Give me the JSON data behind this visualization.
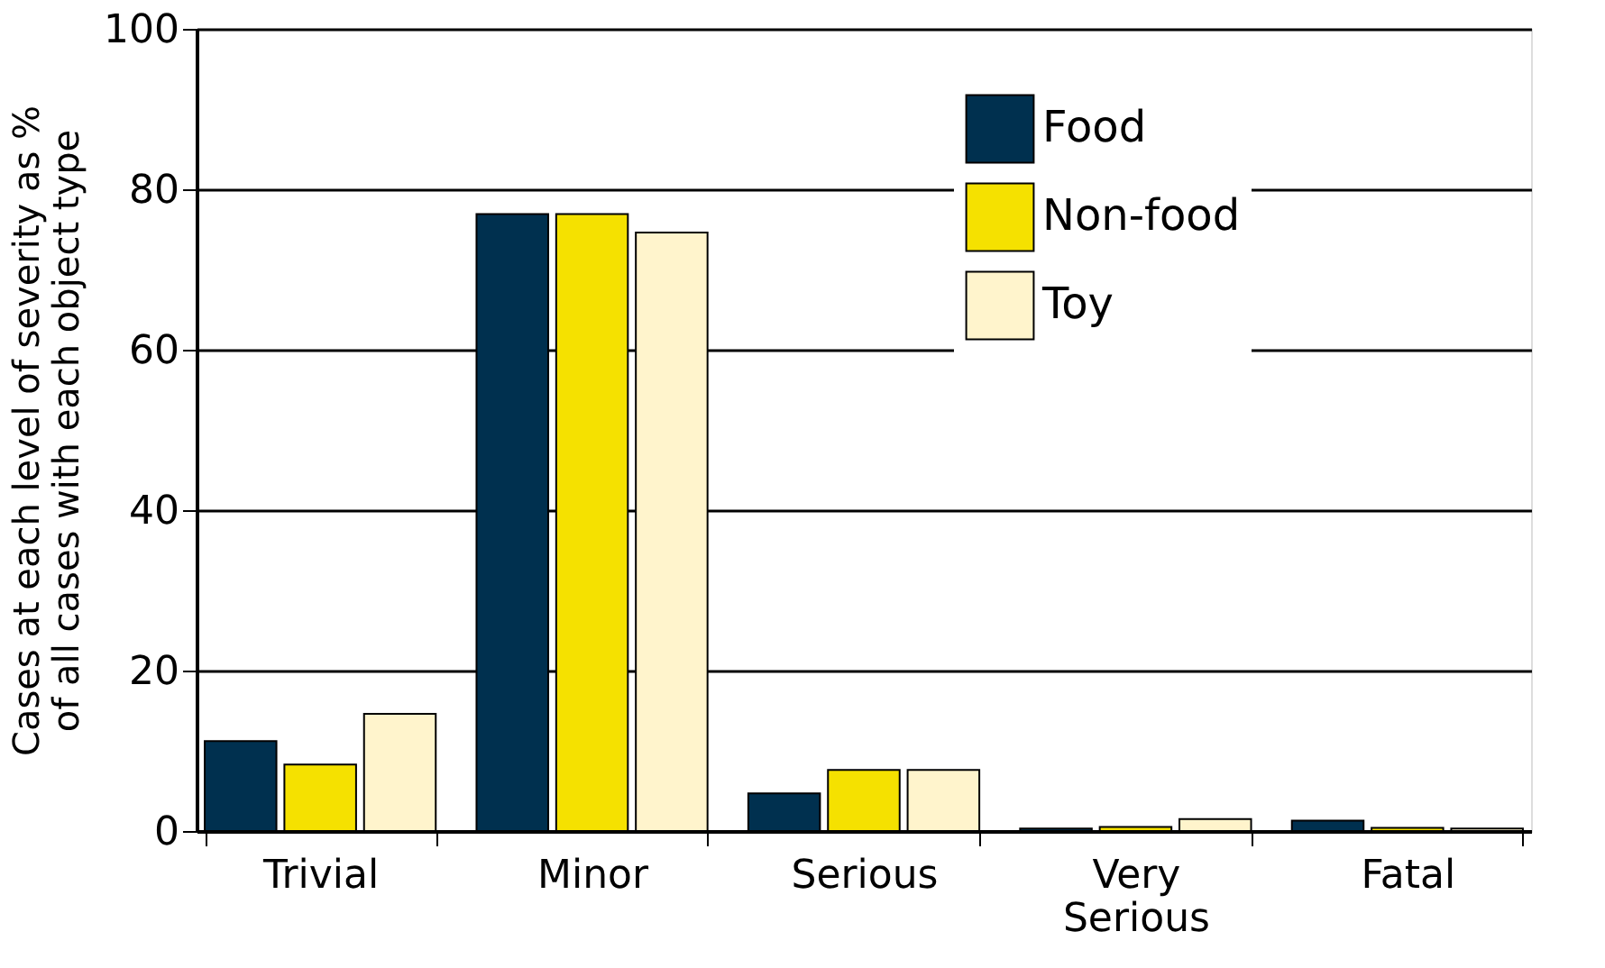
{
  "chart_data": {
    "type": "bar",
    "ylabel": "Cases at each level of severity as %\nof all cases with each object type",
    "categories": [
      "Trivial",
      "Minor",
      "Serious",
      "Very Serious",
      "Fatal"
    ],
    "series": [
      {
        "name": "Food",
        "color": "#00304f",
        "values": [
          11.2,
          76.9,
          4.7,
          0.3,
          1.3
        ]
      },
      {
        "name": "Non-food",
        "color": "#f5e100",
        "values": [
          8.3,
          76.9,
          7.6,
          0.5,
          0.4
        ]
      },
      {
        "name": "Toy",
        "color": "#fff4cc",
        "values": [
          14.6,
          74.6,
          7.6,
          1.5,
          0.3
        ]
      }
    ],
    "ylim": [
      0,
      100
    ],
    "yticks": [
      0,
      20,
      40,
      60,
      80,
      100
    ],
    "grid": "y",
    "legend": "top right"
  }
}
